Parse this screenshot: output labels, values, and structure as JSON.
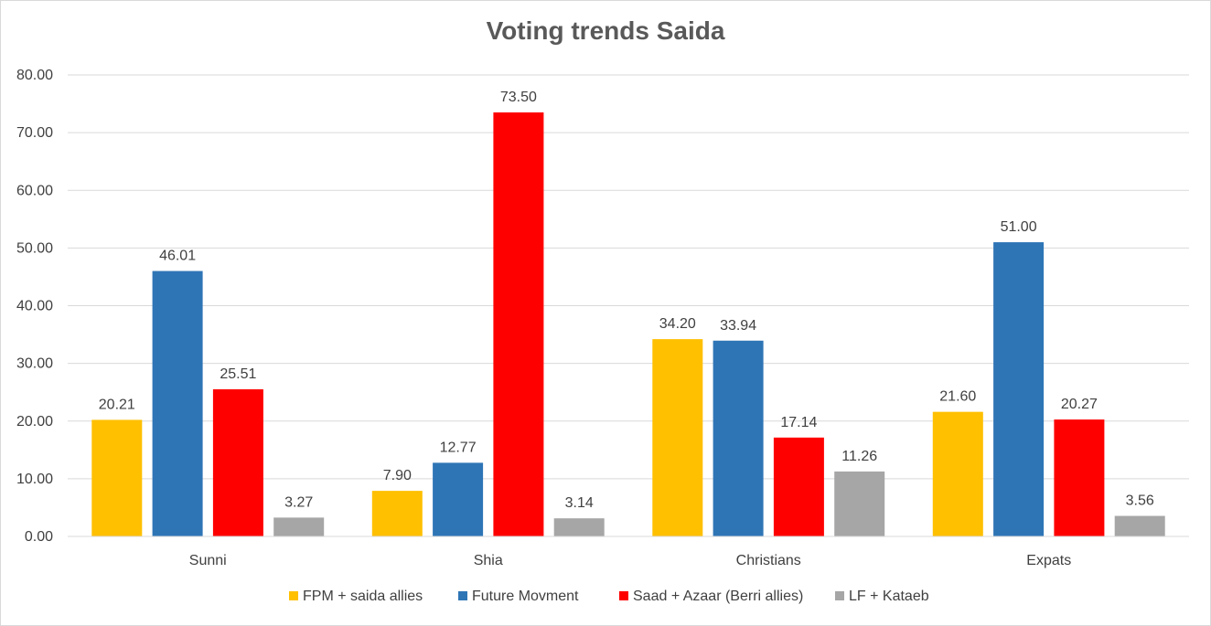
{
  "chart_data": {
    "type": "bar",
    "title": "Voting trends Saida",
    "xlabel": "",
    "ylabel": "",
    "ylim": [
      0,
      80
    ],
    "yticks": [
      "0.00",
      "10.00",
      "20.00",
      "30.00",
      "40.00",
      "50.00",
      "60.00",
      "70.00",
      "80.00"
    ],
    "categories": [
      "Sunni",
      "Shia",
      "Christians",
      "Expats"
    ],
    "series": [
      {
        "name": "FPM + saida allies",
        "color": "#ffc000",
        "values": [
          20.21,
          7.9,
          34.2,
          21.6
        ],
        "labels": [
          "20.21",
          "7.90",
          "34.20",
          "21.60"
        ]
      },
      {
        "name": "Future Movment",
        "color": "#2e75b6",
        "values": [
          46.01,
          12.77,
          33.94,
          51.0
        ],
        "labels": [
          "46.01",
          "12.77",
          "33.94",
          "51.00"
        ]
      },
      {
        "name": "Saad + Azaar (Berri allies)",
        "color": "#ff0000",
        "values": [
          25.51,
          73.5,
          17.14,
          20.27
        ],
        "labels": [
          "25.51",
          "73.50",
          "17.14",
          "20.27"
        ]
      },
      {
        "name": "LF + Kataeb",
        "color": "#a6a6a6",
        "values": [
          3.27,
          3.14,
          11.26,
          3.56
        ],
        "labels": [
          "3.27",
          "3.14",
          "11.26",
          "3.56"
        ]
      }
    ],
    "grid": true,
    "legend": "bottom"
  }
}
